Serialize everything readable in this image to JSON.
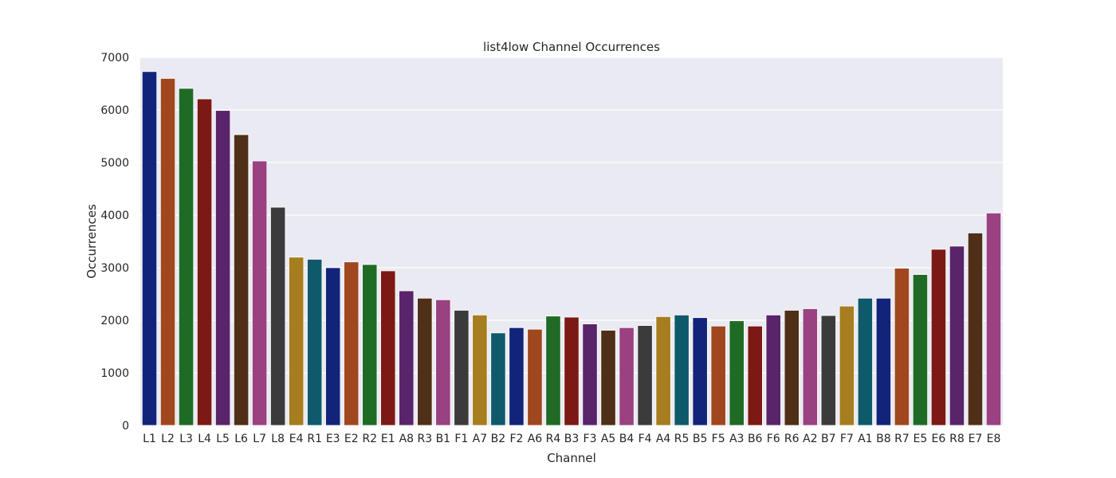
{
  "chart_data": {
    "type": "bar",
    "title": "list4low Channel Occurrences",
    "xlabel": "Channel",
    "ylabel": "Occurrences",
    "ylim": [
      0,
      7000
    ],
    "yticks": [
      0,
      1000,
      2000,
      3000,
      4000,
      5000,
      6000,
      7000
    ],
    "grid": true,
    "legend": "none",
    "categories": [
      "L1",
      "L2",
      "L3",
      "L4",
      "L5",
      "L6",
      "L7",
      "L8",
      "E4",
      "R1",
      "E3",
      "E2",
      "R2",
      "E1",
      "A8",
      "R3",
      "B1",
      "F1",
      "A7",
      "B2",
      "F2",
      "A6",
      "R4",
      "B3",
      "F3",
      "A5",
      "B4",
      "F4",
      "A4",
      "R5",
      "B5",
      "F5",
      "A3",
      "B6",
      "F6",
      "R6",
      "A2",
      "B7",
      "F7",
      "A1",
      "B8",
      "R7",
      "E5",
      "E6",
      "R8",
      "E7",
      "E8"
    ],
    "values": [
      6730,
      6600,
      6410,
      6210,
      5990,
      5530,
      5030,
      4150,
      3200,
      3160,
      3000,
      3110,
      3060,
      2940,
      2560,
      2420,
      2390,
      2190,
      2100,
      1760,
      1860,
      1830,
      2080,
      2060,
      1930,
      1810,
      1860,
      1900,
      2070,
      2100,
      2050,
      1890,
      1990,
      1890,
      2100,
      2190,
      2220,
      2090,
      2270,
      2420,
      2420,
      2990,
      2870,
      3350,
      3410,
      3660,
      4040
    ],
    "palette": [
      "#12247a",
      "#a0471f",
      "#1f6b25",
      "#7d1914",
      "#59246a",
      "#4f2f18",
      "#9a4181",
      "#3b3b3b",
      "#a67d1f",
      "#0f5a6a"
    ],
    "plot_bg": "#eaeaf2",
    "grid_color": "#ffffff"
  }
}
